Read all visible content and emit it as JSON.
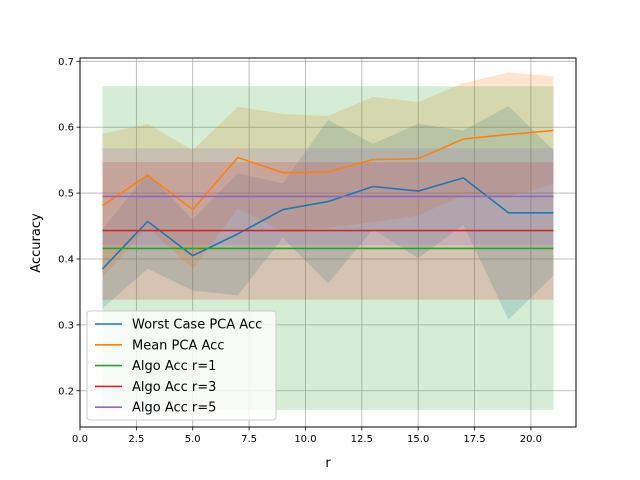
{
  "chart_data": {
    "type": "line",
    "xlabel": "r",
    "ylabel": "Accuracy",
    "xlim": [
      0.0,
      22.0
    ],
    "ylim": [
      0.145,
      0.705
    ],
    "xticks": [
      0.0,
      2.5,
      5.0,
      7.5,
      10.0,
      12.5,
      15.0,
      17.5,
      20.0
    ],
    "xtick_labels": [
      "0.0",
      "2.5",
      "5.0",
      "7.5",
      "10.0",
      "12.5",
      "15.0",
      "17.5",
      "20.0"
    ],
    "yticks": [
      0.2,
      0.3,
      0.4,
      0.5,
      0.6,
      0.7
    ],
    "ytick_labels": [
      "0.2",
      "0.3",
      "0.4",
      "0.5",
      "0.6",
      "0.7"
    ],
    "grid": true,
    "legend": "lower-left",
    "x": [
      1,
      3,
      5,
      7,
      9,
      11,
      13,
      15,
      17,
      19,
      21
    ],
    "series": [
      {
        "name": "Worst Case PCA Acc",
        "color": "#1f77b4",
        "values": [
          0.385,
          0.457,
          0.405,
          0.438,
          0.475,
          0.487,
          0.51,
          0.503,
          0.523,
          0.47,
          0.47
        ],
        "band_lower": [
          0.325,
          0.385,
          0.352,
          0.345,
          0.432,
          0.363,
          0.445,
          0.401,
          0.452,
          0.308,
          0.375
        ],
        "band_upper": [
          0.445,
          0.53,
          0.46,
          0.53,
          0.515,
          0.611,
          0.575,
          0.605,
          0.595,
          0.632,
          0.565
        ]
      },
      {
        "name": "Mean PCA Acc",
        "color": "#ff7f0e",
        "values": [
          0.481,
          0.527,
          0.475,
          0.554,
          0.531,
          0.532,
          0.551,
          0.552,
          0.582,
          0.589,
          0.595
        ],
        "band_lower": [
          0.372,
          0.448,
          0.385,
          0.476,
          0.442,
          0.447,
          0.456,
          0.466,
          0.497,
          0.495,
          0.513
        ],
        "band_upper": [
          0.59,
          0.605,
          0.565,
          0.631,
          0.62,
          0.617,
          0.646,
          0.638,
          0.667,
          0.683,
          0.677
        ]
      },
      {
        "name": "Algo Acc r=1",
        "color": "#2ca02c",
        "values": [
          0.416,
          0.416,
          0.416,
          0.416,
          0.416,
          0.416,
          0.416,
          0.416,
          0.416,
          0.416,
          0.416
        ],
        "band_lower": [
          0.171,
          0.171,
          0.171,
          0.171,
          0.171,
          0.171,
          0.171,
          0.171,
          0.171,
          0.171,
          0.171
        ],
        "band_upper": [
          0.662,
          0.662,
          0.662,
          0.662,
          0.662,
          0.662,
          0.662,
          0.662,
          0.662,
          0.662,
          0.662
        ]
      },
      {
        "name": "Algo Acc r=3",
        "color": "#d62728",
        "values": [
          0.443,
          0.443,
          0.443,
          0.443,
          0.443,
          0.443,
          0.443,
          0.443,
          0.443,
          0.443,
          0.443
        ],
        "band_lower": [
          0.338,
          0.338,
          0.338,
          0.338,
          0.338,
          0.338,
          0.338,
          0.338,
          0.338,
          0.338,
          0.338
        ],
        "band_upper": [
          0.547,
          0.547,
          0.547,
          0.547,
          0.547,
          0.547,
          0.547,
          0.547,
          0.547,
          0.547,
          0.547
        ]
      },
      {
        "name": "Algo Acc r=5",
        "color": "#9467bd",
        "values": [
          0.495,
          0.495,
          0.495,
          0.495,
          0.495,
          0.495,
          0.495,
          0.495,
          0.495,
          0.495,
          0.495
        ],
        "band_lower": [
          0.421,
          0.421,
          0.421,
          0.421,
          0.421,
          0.421,
          0.421,
          0.421,
          0.421,
          0.421,
          0.421
        ],
        "band_upper": [
          0.568,
          0.568,
          0.568,
          0.568,
          0.568,
          0.568,
          0.568,
          0.568,
          0.568,
          0.568,
          0.568
        ]
      }
    ]
  }
}
